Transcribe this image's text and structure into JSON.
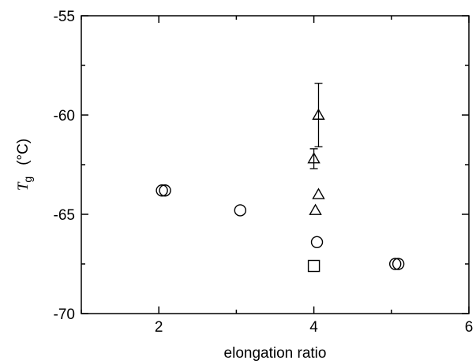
{
  "chart_data": {
    "type": "scatter",
    "xlabel": "elongation ratio",
    "ylabel_symbol": "T",
    "ylabel_subscript": "g",
    "ylabel_unit": "(°C)",
    "xlim": [
      1,
      6
    ],
    "ylim": [
      -70,
      -55
    ],
    "x_ticks": [
      2,
      4,
      6
    ],
    "y_ticks": [
      -70,
      -65,
      -60,
      -55
    ],
    "x_tick_labels": [
      "2",
      "4",
      "6"
    ],
    "y_tick_labels": [
      "-70",
      "-65",
      "-60",
      "-55"
    ],
    "grid": false,
    "series": [
      {
        "marker": "circle",
        "points": [
          {
            "x": 2.04,
            "y": -63.8
          },
          {
            "x": 2.08,
            "y": -63.8
          },
          {
            "x": 3.05,
            "y": -64.8
          },
          {
            "x": 4.04,
            "y": -66.4
          },
          {
            "x": 5.05,
            "y": -67.5
          },
          {
            "x": 5.09,
            "y": -67.5
          }
        ]
      },
      {
        "marker": "triangle",
        "points": [
          {
            "x": 4.06,
            "y": -60.0,
            "err": 1.6
          },
          {
            "x": 4.0,
            "y": -62.2,
            "err": 0.5
          },
          {
            "x": 4.06,
            "y": -64.0
          },
          {
            "x": 4.02,
            "y": -64.8
          }
        ]
      },
      {
        "marker": "square",
        "points": [
          {
            "x": 4.0,
            "y": -67.6
          }
        ]
      }
    ]
  }
}
